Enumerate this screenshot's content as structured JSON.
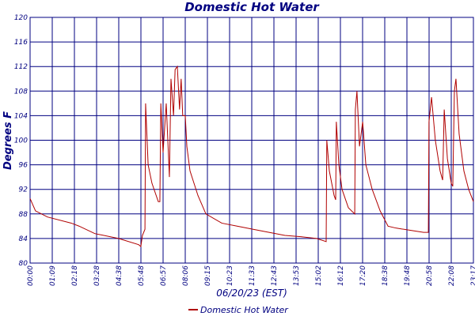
{
  "chart_data": {
    "type": "line",
    "title": "Domestic Hot Water",
    "x_label": "06/20/23 (EST)",
    "y_label": "Degrees F",
    "x": [
      0,
      17,
      55,
      130,
      155,
      204,
      279,
      342,
      349,
      354,
      362,
      364,
      372,
      384,
      404,
      409,
      412,
      419,
      429,
      439,
      444,
      452,
      457,
      464,
      471,
      476,
      481,
      489,
      494,
      504,
      529,
      554,
      604,
      654,
      703,
      753,
      803,
      853,
      903,
      933,
      935,
      943,
      958,
      963,
      965,
      973,
      983,
      1003,
      1023,
      1025,
      1030,
      1038,
      1048,
      1058,
      1078,
      1103,
      1128,
      1153,
      1202,
      1240,
      1255,
      1257,
      1265,
      1277,
      1292,
      1300,
      1305,
      1315,
      1327,
      1332,
      1337,
      1342,
      1352,
      1367,
      1382,
      1397
    ],
    "series": [
      {
        "name": "Domestic Hot Water",
        "color": "#b00000",
        "values": [
          90.5,
          88.5,
          87.5,
          86.5,
          86,
          84.8,
          84,
          83,
          82.7,
          84.5,
          85.5,
          106,
          96,
          93,
          90,
          90,
          106,
          98,
          106,
          94,
          110,
          104,
          111.5,
          112,
          105,
          110,
          104,
          104,
          99,
          95,
          91,
          88,
          86.5,
          86,
          85.5,
          85,
          84.5,
          84.3,
          84,
          83.5,
          100,
          95,
          91,
          90.3,
          103,
          96,
          92,
          89,
          88,
          105,
          108,
          99,
          103,
          96,
          92,
          88.5,
          86,
          85.7,
          85.3,
          85,
          85,
          103,
          107,
          100,
          95,
          93.5,
          105,
          97,
          93,
          92.5,
          108,
          110,
          101,
          95,
          92,
          90
        ]
      }
    ],
    "xlim": [
      0,
      1397
    ],
    "xticks": [
      {
        "value": 0,
        "label": "00:00"
      },
      {
        "value": 69.85,
        "label": "01:09"
      },
      {
        "value": 139.7,
        "label": "02:18"
      },
      {
        "value": 209.55,
        "label": "03:28"
      },
      {
        "value": 279.4,
        "label": "04:38"
      },
      {
        "value": 349.25,
        "label": "05:48"
      },
      {
        "value": 419.1,
        "label": "06:57"
      },
      {
        "value": 488.95,
        "label": "08:06"
      },
      {
        "value": 558.8,
        "label": "09:15"
      },
      {
        "value": 628.65,
        "label": "10:23"
      },
      {
        "value": 698.5,
        "label": "11:33"
      },
      {
        "value": 768.35,
        "label": "12:43"
      },
      {
        "value": 838.2,
        "label": "13:53"
      },
      {
        "value": 908.05,
        "label": "15:02"
      },
      {
        "value": 977.9,
        "label": "16:12"
      },
      {
        "value": 1047.75,
        "label": "17:20"
      },
      {
        "value": 1117.6,
        "label": "18:38"
      },
      {
        "value": 1187.45,
        "label": "19:48"
      },
      {
        "value": 1257.3,
        "label": "20:58"
      },
      {
        "value": 1327.15,
        "label": "22:08"
      },
      {
        "value": 1397,
        "label": "23:17"
      }
    ],
    "ylim": [
      80,
      120
    ],
    "yticks": [
      80,
      84,
      88,
      92,
      96,
      100,
      104,
      108,
      112,
      116,
      120
    ],
    "grid": true,
    "legend": "bottom"
  }
}
